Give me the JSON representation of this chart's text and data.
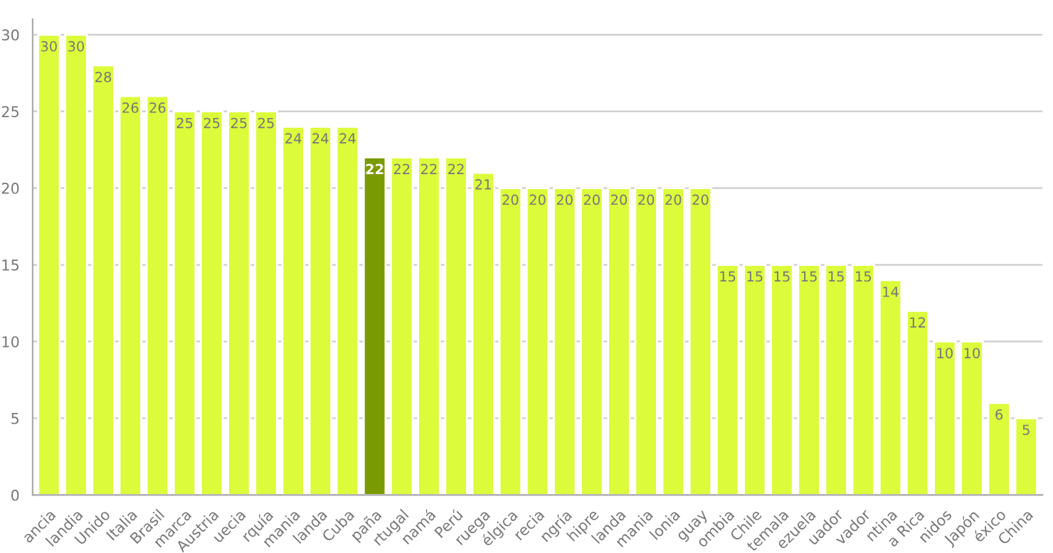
{
  "chart_data": {
    "type": "bar",
    "categories": [
      "ancia",
      "landia",
      "Unido",
      "Italia",
      "Brasil",
      "marca",
      "Austria",
      "uecia",
      "rquía",
      "mania",
      "landa",
      "Cuba",
      "paña",
      "rtugal",
      "namá",
      "Perú",
      "ruega",
      "élgica",
      "recia",
      "ngría",
      "hipre",
      "landa",
      "mania",
      "lonia",
      "guay",
      "ombia",
      "Chile",
      "temala",
      "ezuela",
      "uador",
      "vador",
      "ntina",
      "a Rica",
      "nidos",
      "Japón",
      "éxico",
      "China"
    ],
    "values": [
      30,
      30,
      28,
      26,
      26,
      25,
      25,
      25,
      25,
      24,
      24,
      24,
      22,
      22,
      22,
      22,
      21,
      20,
      20,
      20,
      20,
      20,
      20,
      20,
      20,
      15,
      15,
      15,
      15,
      15,
      15,
      14,
      12,
      10,
      10,
      6,
      5
    ],
    "colors": [
      "#dbfb3b",
      "#dbfb3b",
      "#dbfb3b",
      "#dbfb3b",
      "#dbfb3b",
      "#dbfb3b",
      "#dbfb3b",
      "#dbfb3b",
      "#dbfb3b",
      "#dbfb3b",
      "#dbfb3b",
      "#dbfb3b",
      "#7a9a01",
      "#dbfb3b",
      "#dbfb3b",
      "#dbfb3b",
      "#dbfb3b",
      "#dbfb3b",
      "#dbfb3b",
      "#dbfb3b",
      "#dbfb3b",
      "#dbfb3b",
      "#dbfb3b",
      "#dbfb3b",
      "#dbfb3b",
      "#dbfb3b",
      "#dbfb3b",
      "#dbfb3b",
      "#dbfb3b",
      "#dbfb3b",
      "#dbfb3b",
      "#dbfb3b",
      "#dbfb3b",
      "#dbfb3b",
      "#dbfb3b",
      "#dbfb3b",
      "#dbfb3b"
    ],
    "ylim": [
      0,
      31
    ],
    "yticks": [
      0,
      5,
      10,
      15,
      20,
      25,
      30
    ],
    "grid": "y",
    "data_labels": true,
    "legend": false
  }
}
